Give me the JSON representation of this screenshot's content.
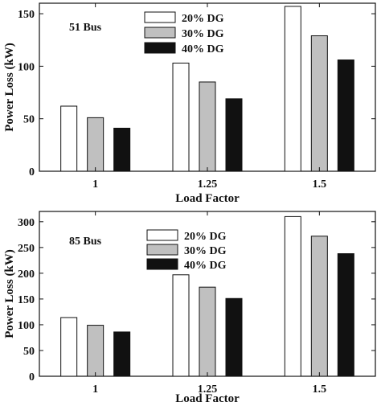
{
  "chart_data": [
    {
      "type": "bar",
      "annotation": "51 Bus",
      "xlabel": "Load Factor",
      "ylabel": "Power Loss (kW)",
      "categories": [
        "1",
        "1.25",
        "1.5"
      ],
      "ylim": [
        0,
        160
      ],
      "yticks": [
        0,
        50,
        100,
        150
      ],
      "legend_position": "top-center",
      "grid": false,
      "series": [
        {
          "name": "20% DG",
          "color": "#ffffff",
          "values": [
            62,
            103,
            157
          ]
        },
        {
          "name": "30% DG",
          "color": "#c0c0c0",
          "values": [
            51,
            85,
            129
          ]
        },
        {
          "name": "40% DG",
          "color": "#111111",
          "values": [
            41,
            69,
            106
          ]
        }
      ]
    },
    {
      "type": "bar",
      "annotation": "85 Bus",
      "xlabel": "Load Factor",
      "ylabel": "Power Loss (kW)",
      "categories": [
        "1",
        "1.25",
        "1.5"
      ],
      "ylim": [
        0,
        320
      ],
      "yticks": [
        0,
        50,
        100,
        150,
        200,
        250,
        300
      ],
      "legend_position": "top-center",
      "grid": false,
      "series": [
        {
          "name": "20% DG",
          "color": "#ffffff",
          "values": [
            114,
            197,
            310
          ]
        },
        {
          "name": "30% DG",
          "color": "#c0c0c0",
          "values": [
            99,
            173,
            272
          ]
        },
        {
          "name": "40% DG",
          "color": "#111111",
          "values": [
            86,
            151,
            238
          ]
        }
      ]
    }
  ]
}
